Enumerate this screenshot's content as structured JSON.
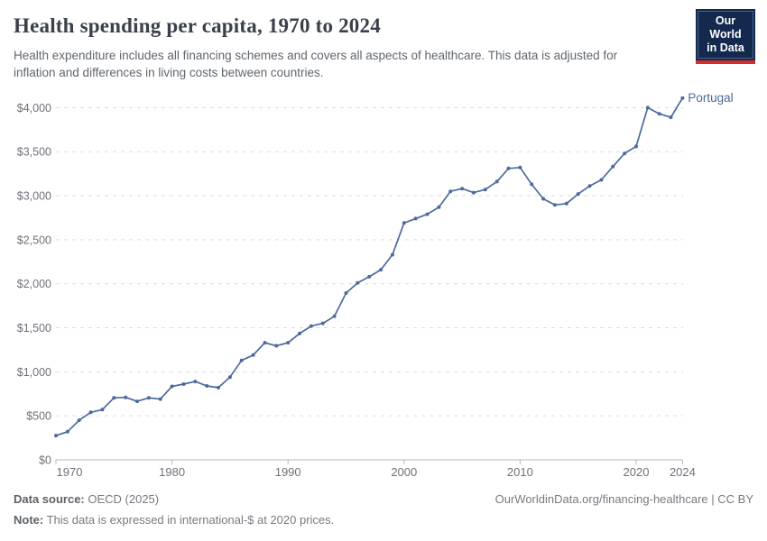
{
  "header": {
    "title": "Health spending per capita, 1970 to 2024",
    "subtitle": "Health expenditure includes all financing schemes and covers all aspects of healthcare. This data is adjusted for inflation and differences in living costs between countries.",
    "logo": {
      "line1": "Our World",
      "line2": "in Data"
    }
  },
  "brand": {
    "logo_navy": "#13294E",
    "logo_red": "#D2302C",
    "line_blue": "#4C6A9C",
    "grid_gray": "#DADDE0",
    "axis_gray": "#B5B8BB",
    "tick_text_gray": "#6E7179"
  },
  "chart_data": {
    "type": "line",
    "title": "Health spending per capita, 1970 to 2024",
    "xlabel": "",
    "ylabel": "",
    "xlim": [
      1970,
      2024
    ],
    "ylim": [
      0,
      4000
    ],
    "grid": "horizontal-dashed",
    "legend_position": "end-of-line-label",
    "x_ticks": [
      {
        "v": 1970,
        "label": "1970"
      },
      {
        "v": 1980,
        "label": "1980"
      },
      {
        "v": 1990,
        "label": "1990"
      },
      {
        "v": 2000,
        "label": "2000"
      },
      {
        "v": 2010,
        "label": "2010"
      },
      {
        "v": 2020,
        "label": "2020"
      },
      {
        "v": 2024,
        "label": "2024"
      }
    ],
    "y_ticks": [
      {
        "v": 0,
        "label": "$0"
      },
      {
        "v": 500,
        "label": "$500"
      },
      {
        "v": 1000,
        "label": "$1,000"
      },
      {
        "v": 1500,
        "label": "$1,500"
      },
      {
        "v": 2000,
        "label": "$2,000"
      },
      {
        "v": 2500,
        "label": "$2,500"
      },
      {
        "v": 3000,
        "label": "$3,000"
      },
      {
        "v": 3500,
        "label": "$3,500"
      },
      {
        "v": 4000,
        "label": "$4,000"
      }
    ],
    "series": [
      {
        "name": "Portugal",
        "color": "#4C6A9C",
        "x": [
          1970,
          1971,
          1972,
          1973,
          1974,
          1975,
          1976,
          1977,
          1978,
          1979,
          1980,
          1981,
          1982,
          1983,
          1984,
          1985,
          1986,
          1987,
          1988,
          1989,
          1990,
          1991,
          1992,
          1993,
          1994,
          1995,
          1996,
          1997,
          1998,
          1999,
          2000,
          2001,
          2002,
          2003,
          2004,
          2005,
          2006,
          2007,
          2008,
          2009,
          2010,
          2011,
          2012,
          2013,
          2014,
          2015,
          2016,
          2017,
          2018,
          2019,
          2020,
          2021,
          2022,
          2023,
          2024
        ],
        "values": [
          275,
          320,
          450,
          540,
          570,
          705,
          710,
          665,
          705,
          690,
          835,
          860,
          890,
          840,
          820,
          940,
          1130,
          1190,
          1330,
          1295,
          1330,
          1435,
          1520,
          1550,
          1630,
          1895,
          2010,
          2080,
          2160,
          2330,
          2690,
          2740,
          2790,
          2870,
          3050,
          3080,
          3035,
          3070,
          3160,
          3310,
          3320,
          3130,
          2965,
          2895,
          2910,
          3020,
          3110,
          3180,
          3330,
          3480,
          3560,
          4000,
          3930,
          3890,
          4110
        ]
      }
    ]
  },
  "footer": {
    "data_source_label": "Data source:",
    "data_source_value": " OECD (2025)",
    "note_label": "Note:",
    "note_value": " This data is expressed in international-$ at 2020 prices.",
    "link": "OurWorldinData.org/financing-healthcare | CC BY"
  }
}
